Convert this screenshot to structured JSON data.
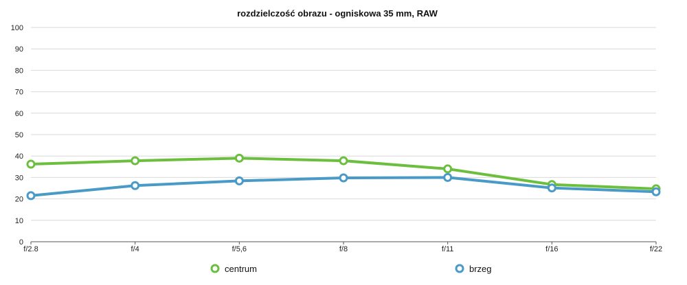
{
  "chart_data": {
    "type": "line",
    "title": "rozdzielczość obrazu - ogniskowa 35 mm, RAW",
    "xlabel": "",
    "ylabel": "",
    "categories": [
      "f/2.8",
      "f/4",
      "f/5,6",
      "f/8",
      "f/11",
      "f/16",
      "f/22"
    ],
    "ylim": [
      0,
      100
    ],
    "yticks": [
      "0",
      "10",
      "20",
      "30",
      "40",
      "50",
      "60",
      "70",
      "80",
      "90",
      "100"
    ],
    "grid": true,
    "legend_position": "bottom",
    "series": [
      {
        "name": "centrum",
        "color": "#6cbf3e",
        "values": [
          36.2,
          37.8,
          39.0,
          37.8,
          34.0,
          26.7,
          24.7
        ]
      },
      {
        "name": "brzeg",
        "color": "#4a9ac7",
        "values": [
          21.5,
          26.2,
          28.4,
          29.8,
          30.0,
          25.1,
          23.3
        ]
      }
    ]
  }
}
